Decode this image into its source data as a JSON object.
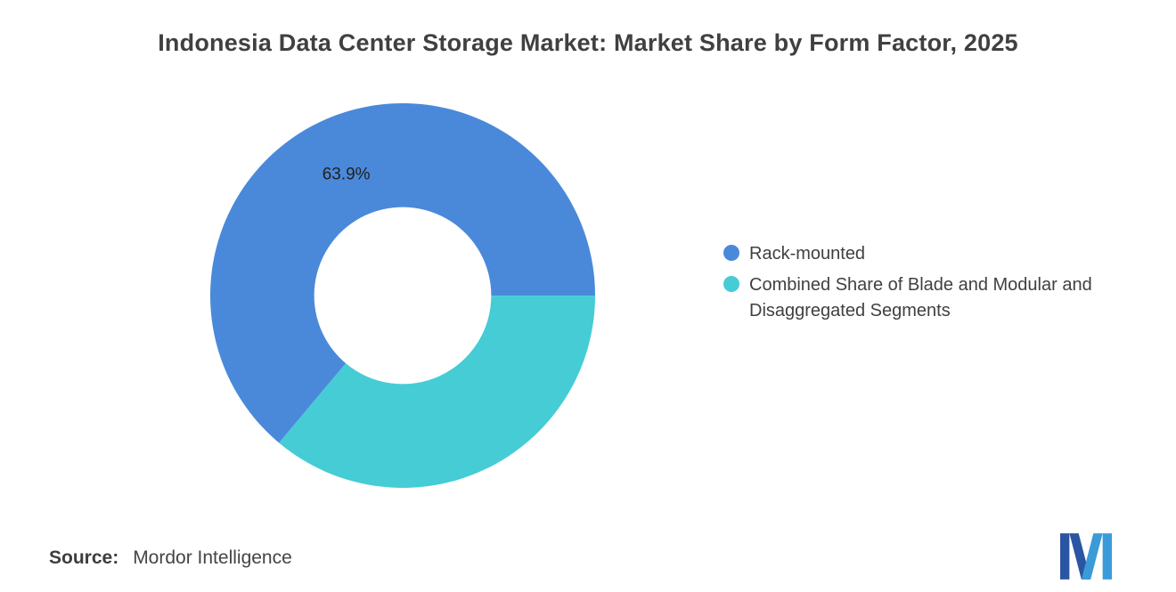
{
  "chart_data": {
    "type": "donut",
    "title": "Indonesia Data Center Storage Market: Market Share by Form Factor, 2025",
    "slices": [
      {
        "label": "Rack-mounted",
        "value": 63.9,
        "data_label": "63.9%",
        "color": "#4A89DA"
      },
      {
        "label": "Combined Share of Blade and Modular and Disaggregated Segments",
        "value": 36.1,
        "data_label": "",
        "color": "#46CCD5"
      }
    ],
    "start_angle_deg": 220,
    "label_radius": 150,
    "donut_hole_ratio": 0.46,
    "legend_position": "right",
    "background": "#ffffff"
  },
  "footer": {
    "source_label": "Source:",
    "source_value": "Mordor Intelligence"
  },
  "logo": {
    "name": "mordor-intelligence-logo",
    "color_dark": "#2B55A2",
    "color_light": "#3A9BD8"
  }
}
